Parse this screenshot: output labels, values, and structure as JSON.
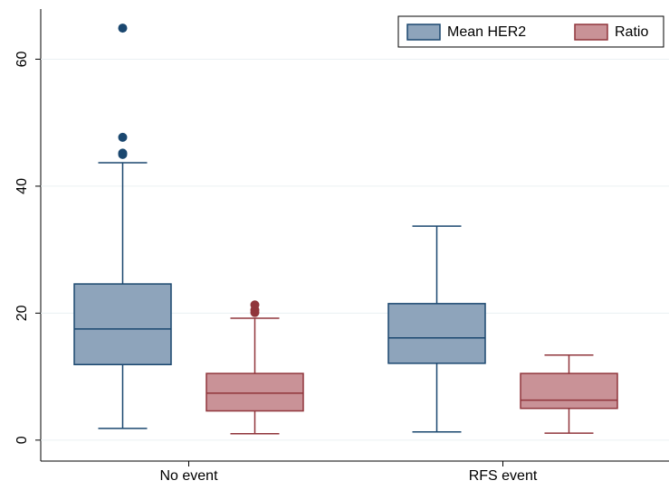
{
  "chart_data": {
    "type": "box",
    "categories": [
      "No event",
      "RFS event"
    ],
    "series": [
      {
        "name": "Mean HER2",
        "color": "#8ea4bb",
        "stroke": "#1a476f",
        "low": [
          1.85,
          1.3
        ],
        "q1": [
          11.9,
          12.1
        ],
        "median": [
          17.5,
          16.1
        ],
        "q3": [
          24.6,
          21.5
        ],
        "high": [
          43.7,
          33.7
        ],
        "outliers": [
          [
            64.9,
            47.7,
            45.2,
            45.0
          ],
          []
        ]
      },
      {
        "name": "Ratio",
        "color": "#c99297",
        "stroke": "#90353b",
        "low": [
          1.0,
          1.1
        ],
        "q1": [
          4.6,
          5.0
        ],
        "median": [
          7.4,
          6.3
        ],
        "q3": [
          10.5,
          10.5
        ],
        "high": [
          19.2,
          13.4
        ],
        "outliers": [
          [
            21.3,
            20.5,
            20.1
          ],
          []
        ]
      }
    ],
    "ylim": [
      -3.3,
      67.9
    ],
    "yticks": [
      0,
      20,
      40,
      60
    ],
    "grid": true,
    "legend": "top-right"
  }
}
